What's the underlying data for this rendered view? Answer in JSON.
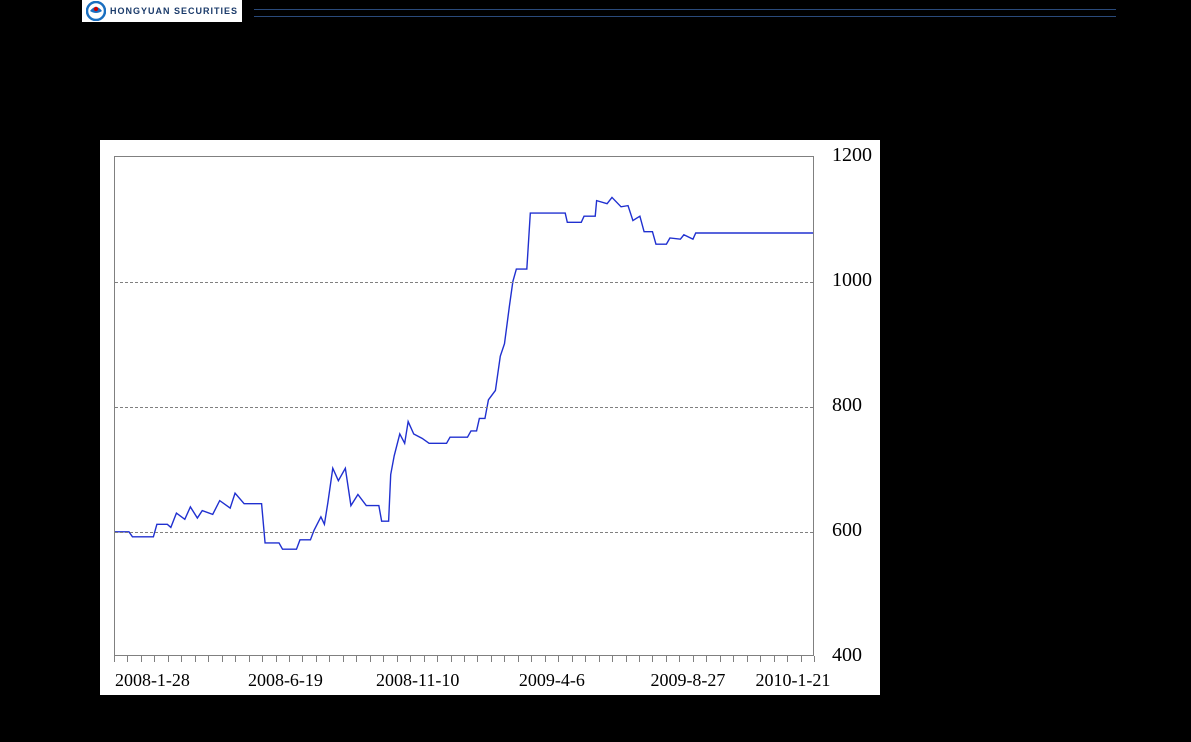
{
  "logo": {
    "subtitle": "HONGYUAN SECURITIES",
    "icon_colors": {
      "ring": "#1a6fc0",
      "inner": "#cc0000",
      "bg": "#ffffff"
    }
  },
  "header_rule_color": "#2a4a7a",
  "chart": {
    "type": "line",
    "background_color": "#ffffff",
    "plot_border_color": "#808080",
    "grid_color": "#808080",
    "grid_dash": "4 4",
    "line_color": "#2030d0",
    "line_width": 1.4,
    "axis_label_fontsize": 20,
    "xaxis_label_fontsize": 18,
    "ylim": [
      400,
      1200
    ],
    "y_ticks": [
      400,
      600,
      800,
      1000,
      1200
    ],
    "y_grid_at": [
      600,
      800,
      1000
    ],
    "x_tick_labels": [
      "2008-1-28",
      "2008-6-19",
      "2008-11-10",
      "2009-4-6",
      "2009-8-27",
      "2010-1-21"
    ],
    "x_tick_positions_u": [
      0.065,
      0.255,
      0.445,
      0.635,
      0.83,
      0.98
    ],
    "x_minor_tick_count": 52,
    "series": [
      {
        "u": 0.0,
        "v": 598
      },
      {
        "u": 0.02,
        "v": 598
      },
      {
        "u": 0.025,
        "v": 590
      },
      {
        "u": 0.055,
        "v": 590
      },
      {
        "u": 0.06,
        "v": 610
      },
      {
        "u": 0.075,
        "v": 610
      },
      {
        "u": 0.08,
        "v": 605
      },
      {
        "u": 0.088,
        "v": 628
      },
      {
        "u": 0.1,
        "v": 618
      },
      {
        "u": 0.108,
        "v": 638
      },
      {
        "u": 0.118,
        "v": 620
      },
      {
        "u": 0.125,
        "v": 632
      },
      {
        "u": 0.14,
        "v": 626
      },
      {
        "u": 0.15,
        "v": 648
      },
      {
        "u": 0.165,
        "v": 636
      },
      {
        "u": 0.172,
        "v": 660
      },
      {
        "u": 0.185,
        "v": 643
      },
      {
        "u": 0.21,
        "v": 643
      },
      {
        "u": 0.215,
        "v": 580
      },
      {
        "u": 0.235,
        "v": 580
      },
      {
        "u": 0.24,
        "v": 570
      },
      {
        "u": 0.26,
        "v": 570
      },
      {
        "u": 0.265,
        "v": 585
      },
      {
        "u": 0.28,
        "v": 585
      },
      {
        "u": 0.285,
        "v": 600
      },
      {
        "u": 0.295,
        "v": 622
      },
      {
        "u": 0.3,
        "v": 610
      },
      {
        "u": 0.305,
        "v": 645
      },
      {
        "u": 0.312,
        "v": 700
      },
      {
        "u": 0.32,
        "v": 680
      },
      {
        "u": 0.33,
        "v": 700
      },
      {
        "u": 0.338,
        "v": 640
      },
      {
        "u": 0.348,
        "v": 658
      },
      {
        "u": 0.36,
        "v": 640
      },
      {
        "u": 0.378,
        "v": 640
      },
      {
        "u": 0.382,
        "v": 615
      },
      {
        "u": 0.392,
        "v": 615
      },
      {
        "u": 0.395,
        "v": 690
      },
      {
        "u": 0.4,
        "v": 720
      },
      {
        "u": 0.408,
        "v": 755
      },
      {
        "u": 0.415,
        "v": 740
      },
      {
        "u": 0.42,
        "v": 775
      },
      {
        "u": 0.428,
        "v": 755
      },
      {
        "u": 0.44,
        "v": 748
      },
      {
        "u": 0.45,
        "v": 740
      },
      {
        "u": 0.475,
        "v": 740
      },
      {
        "u": 0.48,
        "v": 750
      },
      {
        "u": 0.505,
        "v": 750
      },
      {
        "u": 0.51,
        "v": 760
      },
      {
        "u": 0.518,
        "v": 760
      },
      {
        "u": 0.522,
        "v": 780
      },
      {
        "u": 0.53,
        "v": 780
      },
      {
        "u": 0.535,
        "v": 810
      },
      {
        "u": 0.545,
        "v": 825
      },
      {
        "u": 0.552,
        "v": 880
      },
      {
        "u": 0.558,
        "v": 900
      },
      {
        "u": 0.565,
        "v": 960
      },
      {
        "u": 0.57,
        "v": 1000
      },
      {
        "u": 0.575,
        "v": 1020
      },
      {
        "u": 0.59,
        "v": 1020
      },
      {
        "u": 0.595,
        "v": 1110
      },
      {
        "u": 0.645,
        "v": 1110
      },
      {
        "u": 0.648,
        "v": 1095
      },
      {
        "u": 0.668,
        "v": 1095
      },
      {
        "u": 0.672,
        "v": 1105
      },
      {
        "u": 0.688,
        "v": 1105
      },
      {
        "u": 0.69,
        "v": 1130
      },
      {
        "u": 0.705,
        "v": 1125
      },
      {
        "u": 0.712,
        "v": 1135
      },
      {
        "u": 0.725,
        "v": 1120
      },
      {
        "u": 0.735,
        "v": 1122
      },
      {
        "u": 0.742,
        "v": 1098
      },
      {
        "u": 0.752,
        "v": 1105
      },
      {
        "u": 0.758,
        "v": 1080
      },
      {
        "u": 0.77,
        "v": 1080
      },
      {
        "u": 0.775,
        "v": 1060
      },
      {
        "u": 0.79,
        "v": 1060
      },
      {
        "u": 0.795,
        "v": 1070
      },
      {
        "u": 0.81,
        "v": 1068
      },
      {
        "u": 0.815,
        "v": 1075
      },
      {
        "u": 0.828,
        "v": 1068
      },
      {
        "u": 0.832,
        "v": 1078
      },
      {
        "u": 1.0,
        "v": 1078
      }
    ]
  }
}
